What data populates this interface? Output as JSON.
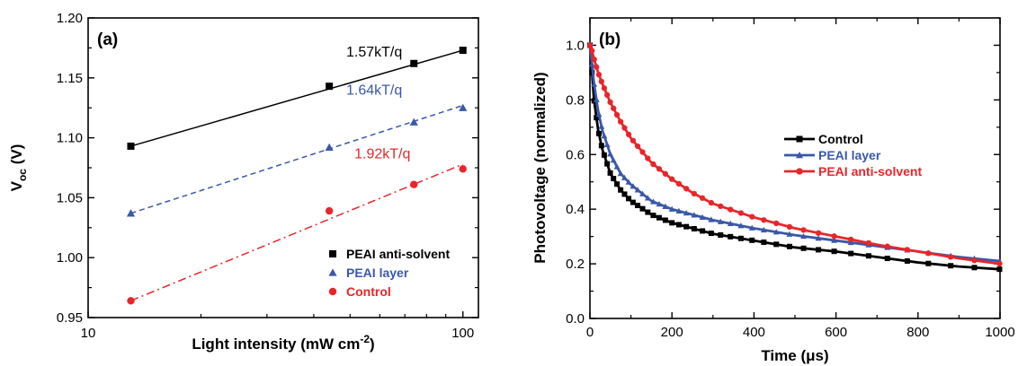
{
  "chart_data": [
    {
      "type": "scatter",
      "panel_label": "(a)",
      "xlabel_main": "Light intensity (mW cm",
      "xlabel_sup": "-2",
      "xlabel_end": ")",
      "ylabel_main": "V",
      "ylabel_sub": "oc",
      "ylabel_end": " (V)",
      "x_scale": "log",
      "xlim": [
        10,
        110
      ],
      "ylim": [
        0.95,
        1.2
      ],
      "x_ticks": [
        10,
        100
      ],
      "x_tick_labels": [
        "10",
        "100"
      ],
      "y_ticks": [
        0.95,
        1.0,
        1.05,
        1.1,
        1.15,
        1.2
      ],
      "y_tick_labels": [
        "0.95",
        "1.00",
        "1.05",
        "1.10",
        "1.15",
        "1.20"
      ],
      "legend_position": "bottom-right",
      "series": [
        {
          "name": "PEAI anti-solvent",
          "color": "#000000",
          "marker": "square",
          "line": "solid",
          "x": [
            13,
            44,
            74,
            100
          ],
          "y": [
            1.093,
            1.143,
            1.162,
            1.173
          ],
          "fit_x": [
            13,
            100
          ],
          "fit_y": [
            1.093,
            1.173
          ],
          "annotation": "1.57kT/q",
          "annotation_at": [
            58,
            1.168
          ]
        },
        {
          "name": "PEAI layer",
          "color": "#3a58a8",
          "marker": "triangle",
          "line": "dashed",
          "x": [
            13,
            44,
            74,
            100
          ],
          "y": [
            1.037,
            1.092,
            1.113,
            1.125
          ],
          "fit_x": [
            13,
            100
          ],
          "fit_y": [
            1.037,
            1.127
          ],
          "annotation": "1.64kT/q",
          "annotation_at": [
            58,
            1.136
          ]
        },
        {
          "name": "Control",
          "color": "#e8262a",
          "marker": "circle",
          "line": "dashdot",
          "x": [
            13,
            44,
            74,
            100
          ],
          "y": [
            0.964,
            1.039,
            1.061,
            1.074
          ],
          "fit_x": [
            13,
            100
          ],
          "fit_y": [
            0.964,
            1.078
          ],
          "annotation": "1.92kT/q",
          "annotation_at": [
            61,
            1.083
          ]
        }
      ]
    },
    {
      "type": "line",
      "panel_label": "(b)",
      "xlabel_main": "Time (",
      "xlabel_greek": "μ",
      "xlabel_end": "s)",
      "ylabel": "Photovoltage (normalized)",
      "xlim": [
        0,
        1000
      ],
      "ylim": [
        0.0,
        1.1
      ],
      "x_ticks": [
        0,
        200,
        400,
        600,
        800,
        1000
      ],
      "x_tick_labels": [
        "0",
        "200",
        "400",
        "600",
        "800",
        "1000"
      ],
      "y_ticks": [
        0.0,
        0.2,
        0.4,
        0.6,
        0.8,
        1.0
      ],
      "y_tick_labels": [
        "0.0",
        "0.2",
        "0.4",
        "0.6",
        "0.8",
        "1.0"
      ],
      "legend_position": "center-right",
      "series": [
        {
          "name": "Control",
          "color": "#000000",
          "marker": "square",
          "x": [
            0,
            5,
            10,
            20,
            30,
            50,
            75,
            100,
            150,
            200,
            250,
            300,
            400,
            500,
            600,
            700,
            800,
            900,
            1000
          ],
          "y": [
            1.0,
            0.9,
            0.8,
            0.69,
            0.62,
            0.53,
            0.47,
            0.43,
            0.38,
            0.35,
            0.33,
            0.31,
            0.285,
            0.26,
            0.245,
            0.225,
            0.205,
            0.19,
            0.18
          ]
        },
        {
          "name": "PEAI layer",
          "color": "#3a58a8",
          "marker": "triangle",
          "x": [
            0,
            5,
            10,
            20,
            30,
            50,
            75,
            100,
            150,
            200,
            250,
            300,
            400,
            500,
            600,
            700,
            800,
            900,
            1000
          ],
          "y": [
            1.0,
            0.93,
            0.86,
            0.76,
            0.69,
            0.6,
            0.53,
            0.49,
            0.43,
            0.4,
            0.38,
            0.36,
            0.33,
            0.305,
            0.285,
            0.265,
            0.245,
            0.225,
            0.21
          ]
        },
        {
          "name": "PEAI anti-solvent",
          "color": "#e8262a",
          "marker": "circle",
          "x": [
            0,
            5,
            10,
            20,
            30,
            50,
            75,
            100,
            150,
            200,
            250,
            300,
            400,
            500,
            600,
            700,
            800,
            900,
            1000
          ],
          "y": [
            1.0,
            0.98,
            0.95,
            0.9,
            0.86,
            0.79,
            0.72,
            0.66,
            0.57,
            0.51,
            0.46,
            0.42,
            0.37,
            0.33,
            0.3,
            0.27,
            0.245,
            0.22,
            0.2
          ]
        }
      ]
    }
  ]
}
